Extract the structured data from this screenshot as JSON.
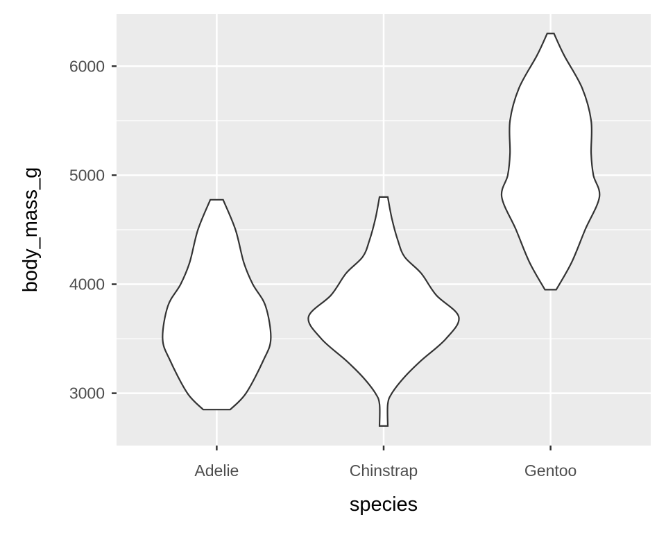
{
  "chart_data": {
    "type": "violin",
    "title": "",
    "xlabel": "species",
    "ylabel": "body_mass_g",
    "categories": [
      "Adelie",
      "Chinstrap",
      "Gentoo"
    ],
    "ylim": [
      2520,
      6480
    ],
    "yticks": [
      3000,
      4000,
      5000,
      6000
    ],
    "ytick_labels": [
      "3000",
      "4000",
      "5000",
      "6000"
    ],
    "grid": true,
    "colors": {
      "panel": "#EBEBEB",
      "grid": "#FFFFFF",
      "outline": "#333333",
      "fill": "#FFFFFF"
    },
    "series": [
      {
        "name": "Adelie",
        "profile": [
          [
            2850,
            0.18
          ],
          [
            3000,
            0.39
          ],
          [
            3300,
            0.62
          ],
          [
            3500,
            0.72
          ],
          [
            3800,
            0.65
          ],
          [
            4000,
            0.48
          ],
          [
            4200,
            0.36
          ],
          [
            4500,
            0.25
          ],
          [
            4775,
            0.085
          ]
        ]
      },
      {
        "name": "Chinstrap",
        "profile": [
          [
            2700,
            0.055
          ],
          [
            2900,
            0.055
          ],
          [
            3000,
            0.11
          ],
          [
            3150,
            0.28
          ],
          [
            3300,
            0.5
          ],
          [
            3500,
            0.83
          ],
          [
            3700,
            1.0
          ],
          [
            3900,
            0.7
          ],
          [
            4100,
            0.5
          ],
          [
            4250,
            0.28
          ],
          [
            4400,
            0.19
          ],
          [
            4600,
            0.11
          ],
          [
            4800,
            0.055
          ]
        ]
      },
      {
        "name": "Gentoo",
        "profile": [
          [
            3950,
            0.075
          ],
          [
            4200,
            0.28
          ],
          [
            4500,
            0.46
          ],
          [
            4800,
            0.65
          ],
          [
            5000,
            0.57
          ],
          [
            5200,
            0.54
          ],
          [
            5500,
            0.54
          ],
          [
            5800,
            0.42
          ],
          [
            6100,
            0.18
          ],
          [
            6300,
            0.045
          ]
        ]
      }
    ]
  }
}
